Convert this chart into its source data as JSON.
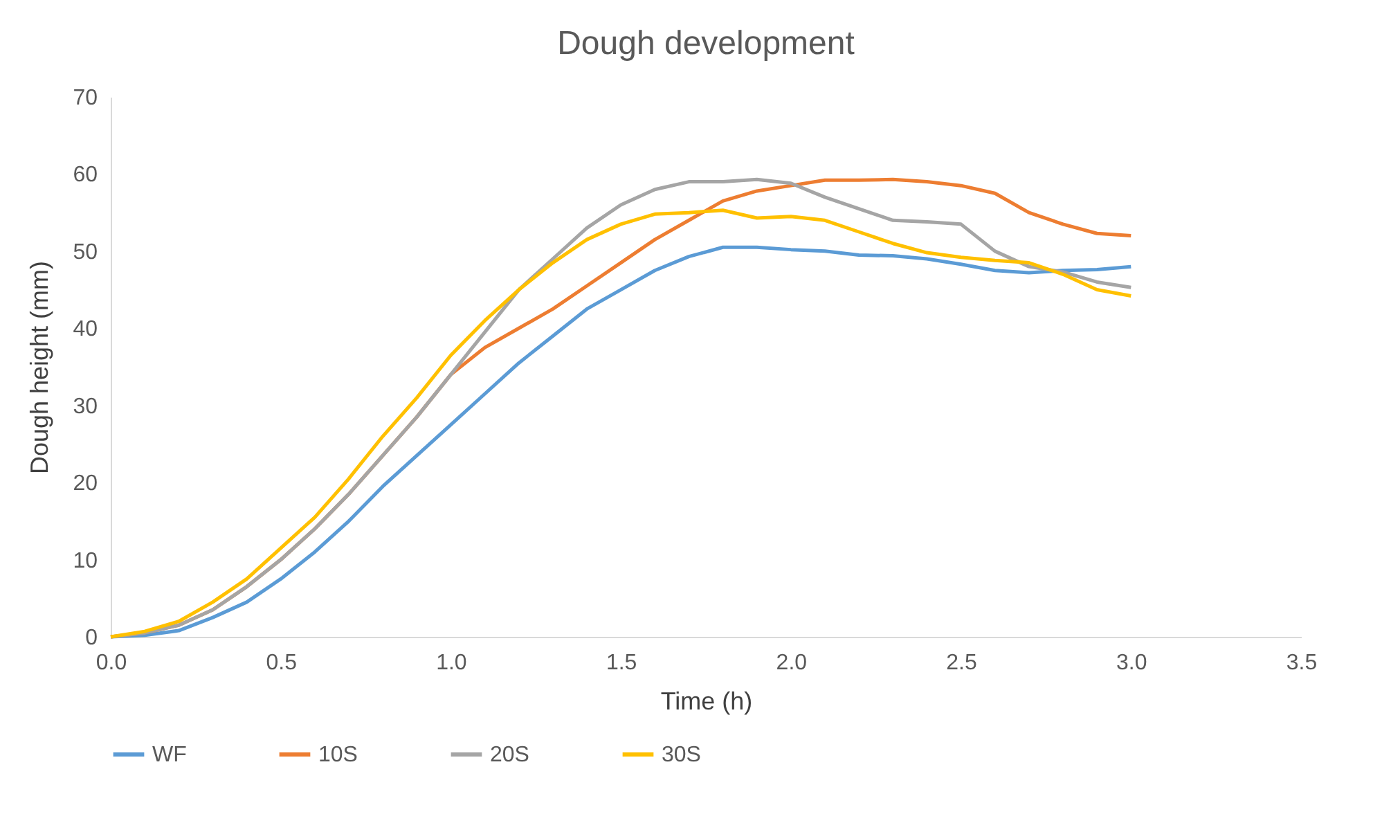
{
  "chart_data": {
    "type": "line",
    "title": "Dough development",
    "xlabel": "Time (h)",
    "ylabel": "Dough height (mm)",
    "x": [
      0,
      0.1,
      0.2,
      0.3,
      0.4,
      0.5,
      0.6,
      0.7,
      0.8,
      0.9,
      1.0,
      1.1,
      1.2,
      1.3,
      1.4,
      1.5,
      1.6,
      1.7,
      1.8,
      1.9,
      2.0,
      2.1,
      2.2,
      2.3,
      2.4,
      2.5,
      2.6,
      2.7,
      2.8,
      2.9,
      3.0
    ],
    "series": [
      {
        "name": "WF",
        "color": "#5b9bd5",
        "values": [
          0,
          0.2,
          0.8,
          2.5,
          4.5,
          7.5,
          11,
          15,
          19.5,
          23.5,
          27.5,
          31.5,
          35.5,
          39,
          42.5,
          45,
          47.5,
          49.3,
          50.5,
          50.5,
          50.2,
          50,
          49.5,
          49.4,
          49,
          48.3,
          47.5,
          47.2,
          47.5,
          47.6,
          48
        ]
      },
      {
        "name": "10S",
        "color": "#ed7d31",
        "values": [
          0,
          0.5,
          1.5,
          3.5,
          6.5,
          10,
          14,
          18.5,
          23.5,
          28.5,
          34,
          37.5,
          40,
          42.5,
          45.5,
          48.5,
          51.5,
          54,
          56.5,
          57.8,
          58.5,
          59.2,
          59.2,
          59.3,
          59,
          58.5,
          57.5,
          55,
          53.5,
          52.3,
          52
        ]
      },
      {
        "name": "20S",
        "color": "#a5a5a5",
        "values": [
          0,
          0.5,
          1.5,
          3.5,
          6.5,
          10,
          14,
          18.5,
          23.5,
          28.5,
          34,
          39.5,
          45,
          49,
          53,
          56,
          58,
          59,
          59,
          59.3,
          58.8,
          57,
          55.5,
          54,
          53.8,
          53.5,
          50,
          48,
          47.3,
          46,
          45.3
        ]
      },
      {
        "name": "30S",
        "color": "#ffc000",
        "values": [
          0,
          0.7,
          2,
          4.5,
          7.5,
          11.5,
          15.5,
          20.5,
          26,
          31,
          36.5,
          41,
          45,
          48.5,
          51.5,
          53.5,
          54.8,
          55,
          55.3,
          54.3,
          54.5,
          54,
          52.5,
          51,
          49.8,
          49.2,
          48.8,
          48.5,
          47,
          45,
          44.2
        ]
      }
    ],
    "xlim": [
      0,
      3.5
    ],
    "xticks": [
      {
        "value": 0,
        "label": "0.0"
      },
      {
        "value": 0.5,
        "label": "0.5"
      },
      {
        "value": 1,
        "label": "1.0"
      },
      {
        "value": 1.5,
        "label": "1.5"
      },
      {
        "value": 2,
        "label": "2.0"
      },
      {
        "value": 2.5,
        "label": "2.5"
      },
      {
        "value": 3,
        "label": "3.0"
      },
      {
        "value": 3.5,
        "label": "3.5"
      }
    ],
    "ylim": [
      0,
      70
    ],
    "yticks": [
      0,
      10,
      20,
      30,
      40,
      50,
      60,
      70
    ],
    "legend": "bottom",
    "marker": "none",
    "line_style": "solid"
  }
}
